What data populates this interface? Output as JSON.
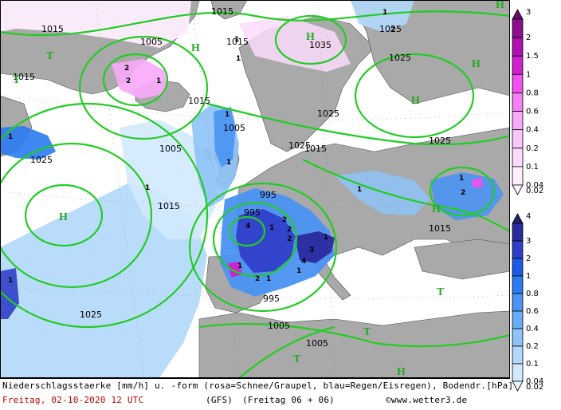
{
  "caption": {
    "line1": "Niederschlagsstaerke [mm/h] u. -form (rosa=Schnee/Graupel, blau=Regen/Eisregen), Bodendr.[hPa]",
    "date": "Freitag, 02-10-2020  12 UTC",
    "model": "(GFS)",
    "run": "(Freitag 06 + 06)",
    "copyright": "©www.wetter3.de"
  },
  "legend_snow": {
    "levels": [
      "3",
      "2",
      "1.5",
      "1",
      "0.8",
      "0.6",
      "0.4",
      "0.2",
      "0.1",
      "0.04",
      "0.02"
    ],
    "colors": [
      "#6a0a6a",
      "#8e0e8e",
      "#b010b0",
      "#d020d0",
      "#f050f0",
      "#f57ff5",
      "#f8a8f8",
      "#fac6fa",
      "#fcdcfc",
      "#fdeefd",
      "#fff6ff"
    ]
  },
  "legend_rain": {
    "levels": [
      "4",
      "3",
      "2",
      "1",
      "0.8",
      "0.6",
      "0.4",
      "0.2",
      "0.1",
      "0.04",
      "0.02"
    ],
    "colors": [
      "#22226a",
      "#2a2a9e",
      "#2f3fc8",
      "#1b5be6",
      "#2a7af0",
      "#4a94f3",
      "#6aacf6",
      "#8ec3f8",
      "#b2d8fb",
      "#d2e9fd",
      "#eaf5ff"
    ]
  },
  "map": {
    "isobar_labels": [
      "1015",
      "1015",
      "1015",
      "1025",
      "1005",
      "1025",
      "1035",
      "1025",
      "1005",
      "1025",
      "1015",
      "1005",
      "1025",
      "1015",
      "995",
      "995",
      "1025",
      "1005",
      "1005",
      "995",
      "1015",
      "1015",
      "1025",
      "1015"
    ],
    "high_labels": [
      "H",
      "H",
      "H",
      "H",
      "H",
      "H",
      "H",
      "H"
    ],
    "low_labels": [
      "T",
      "T",
      "T",
      "T",
      "T"
    ],
    "precip_labels": [
      "1",
      "2",
      "1",
      "1",
      "2",
      "2",
      "1",
      "1",
      "1",
      "1",
      "1",
      "1",
      "4",
      "2",
      "2",
      "1",
      "2",
      "1",
      "3",
      "4",
      "1",
      "2",
      "1",
      "1",
      "1",
      "2",
      "1"
    ],
    "colors": {
      "sea": "#ffffff",
      "land": "#a8a8a8",
      "isobar": "#22cc22",
      "coast": "#505050"
    }
  }
}
